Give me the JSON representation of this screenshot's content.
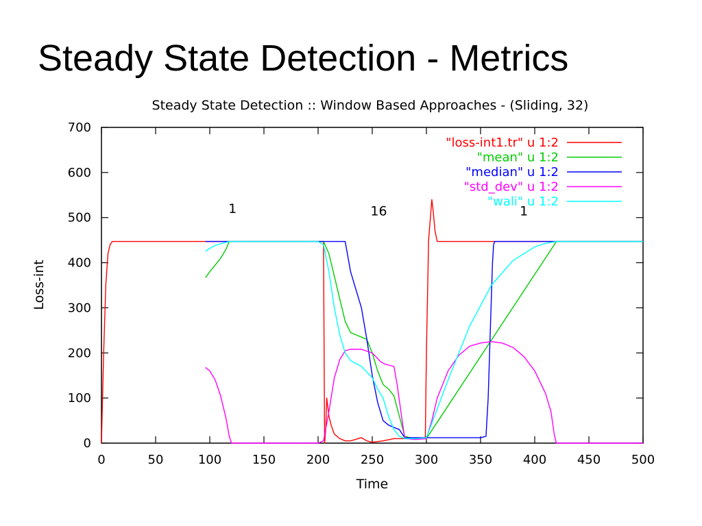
{
  "slide": {
    "title": "Steady State Detection - Metrics"
  },
  "chart_data": {
    "type": "line",
    "title": "Steady State Detection :: Window Based Approaches - (Sliding, 32)",
    "xlabel": "Time",
    "ylabel": "Loss-int",
    "xlim": [
      0,
      500
    ],
    "ylim": [
      0,
      700
    ],
    "xticks": [
      0,
      50,
      100,
      150,
      200,
      250,
      300,
      350,
      400,
      450,
      500
    ],
    "yticks": [
      0,
      100,
      200,
      300,
      400,
      500,
      600,
      700
    ],
    "grid": false,
    "legend_position": "top-right",
    "annotations": [
      {
        "text": "1",
        "x": 121,
        "y": 510
      },
      {
        "text": "16",
        "x": 256,
        "y": 505
      },
      {
        "text": "1",
        "x": 390,
        "y": 505
      }
    ],
    "series": [
      {
        "name": "\"loss-int1.tr\" u 1:2",
        "color": "#ff0000",
        "x": [
          0,
          2,
          4,
          6,
          8,
          10,
          100,
          205,
          206,
          207,
          208,
          210,
          212,
          215,
          220,
          225,
          230,
          240,
          245,
          250,
          260,
          270,
          280,
          290,
          299,
          300,
          302,
          305,
          306,
          308,
          310,
          320,
          400,
          500
        ],
        "y": [
          0,
          200,
          350,
          420,
          440,
          447,
          447,
          447,
          0,
          30,
          100,
          60,
          40,
          20,
          10,
          5,
          5,
          12,
          5,
          2,
          5,
          10,
          10,
          12,
          12,
          200,
          450,
          540,
          520,
          470,
          447,
          447,
          447,
          447
        ]
      },
      {
        "name": "\"mean\" u 1:2",
        "color": "#00cc00",
        "x": [
          96,
          100,
          105,
          110,
          115,
          118,
          200,
          205,
          210,
          215,
          220,
          225,
          230,
          235,
          240,
          245,
          250,
          255,
          260,
          265,
          270,
          275,
          280,
          285,
          290,
          295,
          300,
          420,
          500
        ],
        "y": [
          367,
          380,
          395,
          410,
          430,
          447,
          447,
          447,
          420,
          370,
          320,
          270,
          245,
          240,
          235,
          230,
          200,
          160,
          130,
          120,
          105,
          60,
          15,
          12,
          10,
          10,
          10,
          447,
          447
        ]
      },
      {
        "name": "\"median\" u 1:2",
        "color": "#0000ff",
        "x": [
          96,
          200,
          225,
          227,
          230,
          235,
          240,
          245,
          250,
          255,
          260,
          265,
          270,
          275,
          280,
          290,
          300,
          350,
          355,
          357,
          359,
          361,
          362,
          363,
          365,
          500
        ],
        "y": [
          447,
          447,
          447,
          420,
          380,
          340,
          300,
          230,
          150,
          90,
          50,
          40,
          35,
          30,
          12,
          12,
          12,
          12,
          15,
          100,
          250,
          400,
          440,
          447,
          447,
          447
        ]
      },
      {
        "name": "\"std_dev\" u 1:2",
        "color": "#ff00ff",
        "x": [
          96,
          100,
          105,
          110,
          115,
          118,
          120,
          200,
          205,
          210,
          215,
          220,
          225,
          230,
          240,
          250,
          258,
          262,
          270,
          273,
          277,
          280,
          290,
          300,
          305,
          310,
          320,
          330,
          340,
          350,
          360,
          370,
          380,
          390,
          400,
          410,
          415,
          418,
          420,
          500
        ],
        "y": [
          168,
          160,
          140,
          105,
          55,
          15,
          0,
          0,
          5,
          70,
          145,
          185,
          205,
          208,
          208,
          200,
          180,
          175,
          170,
          130,
          60,
          10,
          8,
          10,
          50,
          100,
          160,
          195,
          215,
          222,
          225,
          222,
          212,
          192,
          160,
          110,
          70,
          20,
          0,
          0
        ]
      },
      {
        "name": "\"wali\" u 1:2",
        "color": "#00ffff",
        "x": [
          96,
          100,
          105,
          110,
          115,
          118,
          200,
          205,
          210,
          215,
          220,
          225,
          230,
          240,
          250,
          255,
          260,
          265,
          270,
          275,
          280,
          290,
          300,
          320,
          340,
          360,
          380,
          400,
          410,
          420,
          430,
          500
        ],
        "y": [
          425,
          432,
          438,
          442,
          445,
          447,
          447,
          440,
          380,
          300,
          240,
          200,
          183,
          170,
          145,
          120,
          100,
          60,
          30,
          15,
          10,
          10,
          12,
          140,
          260,
          350,
          405,
          435,
          443,
          447,
          447,
          447
        ]
      }
    ]
  }
}
